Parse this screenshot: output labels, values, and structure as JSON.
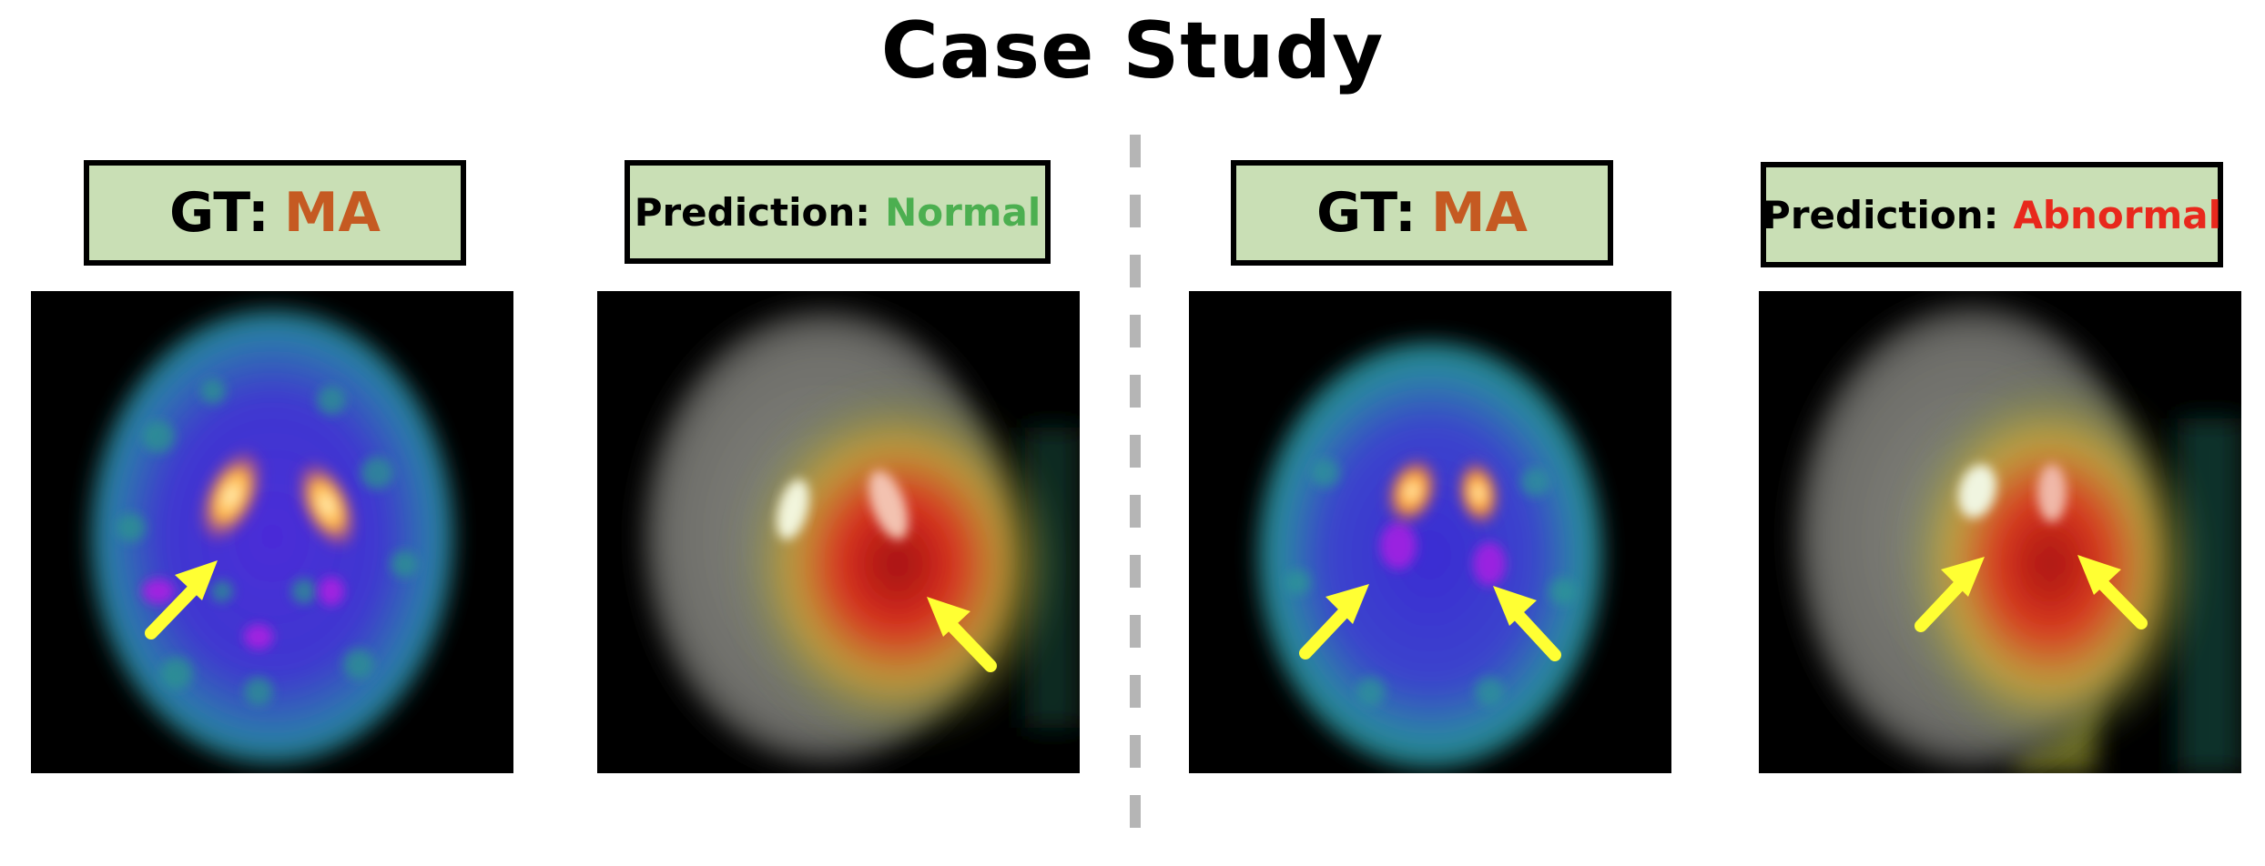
{
  "title": "Case Study",
  "colors": {
    "box_fill": "#c9dfb5",
    "ma": "#c55a22",
    "normal": "#4caf50",
    "abnormal": "#e8281c",
    "arrow": "#ffff33",
    "divider": "#b5b5b5"
  },
  "left_case": {
    "gt": {
      "prefix": "GT:",
      "value": "MA"
    },
    "prediction": {
      "prefix": "Prediction:",
      "value": "Normal"
    },
    "scan_image": "pet-scan-image",
    "heatmap_image": "heatmap-overlay-image"
  },
  "right_case": {
    "gt": {
      "prefix": "GT:",
      "value": "MA"
    },
    "prediction": {
      "prefix": "Prediction:",
      "value": "Abnormal"
    },
    "scan_image": "pet-scan-image",
    "heatmap_image": "heatmap-overlay-image"
  },
  "icons": [
    "arrow-icon",
    "dashed-divider"
  ]
}
